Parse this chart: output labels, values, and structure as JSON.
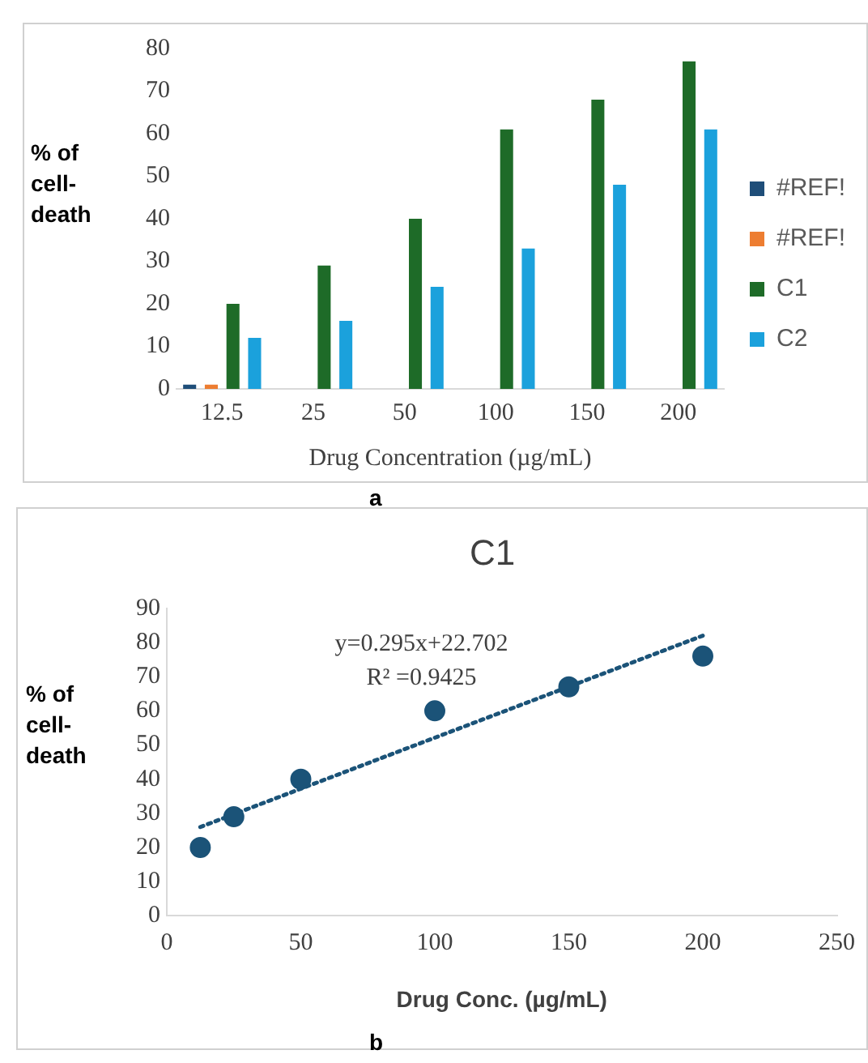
{
  "chart_data": [
    {
      "type": "bar",
      "categories": [
        "12.5",
        "25",
        "50",
        "100",
        "150",
        "200"
      ],
      "xlabel": "Drug Concentration (µg/mL)",
      "ylabel": "% of cell-death",
      "ylim": [
        0,
        80
      ],
      "yticks": [
        0,
        10,
        20,
        30,
        40,
        50,
        60,
        70,
        80
      ],
      "grid": false,
      "legend": "right",
      "series": [
        {
          "name": "#REF!",
          "color": "#1f4e79",
          "values": [
            1,
            null,
            null,
            null,
            null,
            null
          ]
        },
        {
          "name": "#REF!",
          "color": "#ed7d31",
          "values": [
            1,
            null,
            null,
            null,
            null,
            null
          ]
        },
        {
          "name": "C1",
          "color": "#1e6b28",
          "values": [
            20,
            29,
            40,
            61,
            68,
            77
          ]
        },
        {
          "name": "C2",
          "color": "#1ba1dc",
          "values": [
            12,
            16,
            24,
            33,
            48,
            61
          ]
        }
      ],
      "annotations": [
        "a"
      ]
    },
    {
      "type": "scatter",
      "title": "C1",
      "xlabel": "Drug Conc. (µg/mL)",
      "ylabel": "% of cell-death",
      "xlim": [
        0,
        250
      ],
      "xticks": [
        0,
        50,
        100,
        150,
        200,
        250
      ],
      "ylim": [
        0,
        90
      ],
      "yticks": [
        0,
        10,
        20,
        30,
        40,
        50,
        60,
        70,
        80,
        90
      ],
      "grid": false,
      "legend": false,
      "marker": "circle",
      "series": [
        {
          "color": "#1b5378",
          "x": [
            12.5,
            25,
            50,
            100,
            150,
            200
          ],
          "values": [
            20,
            29,
            40,
            60,
            67,
            76
          ]
        },
        {
          "type": "line",
          "color": "#1b5378",
          "line_style": "dotted",
          "marker": "none",
          "x": [
            12.5,
            200
          ],
          "values": [
            26,
            82
          ]
        }
      ],
      "annotations": [
        "y=0.295x+22.702",
        "R² =0.9425",
        "b"
      ]
    }
  ]
}
